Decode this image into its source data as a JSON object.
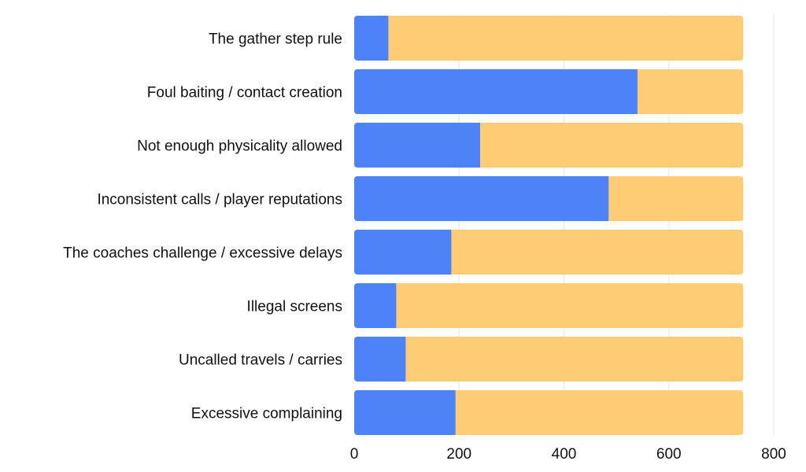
{
  "chart_data": {
    "type": "bar",
    "orientation": "horizontal",
    "stacked": true,
    "categories": [
      "The gather step rule",
      "Foul baiting / contact creation",
      "Not enough physicality allowed",
      "Inconsistent calls / player reputations",
      "The coaches challenge / excessive delays",
      "Illegal screens",
      "Uncalled travels / carries",
      "Excessive complaining"
    ],
    "series": [
      {
        "values": [
          65,
          540,
          240,
          485,
          185,
          80,
          98,
          193
        ]
      },
      {
        "values": [
          677,
          202,
          502,
          257,
          557,
          662,
          644,
          549
        ]
      }
    ],
    "xlim": [
      0,
      800
    ],
    "xticks": [
      0,
      200,
      400,
      600,
      800
    ],
    "grid": true,
    "colors": [
      "#4d82f8",
      "#fdcc74"
    ]
  }
}
